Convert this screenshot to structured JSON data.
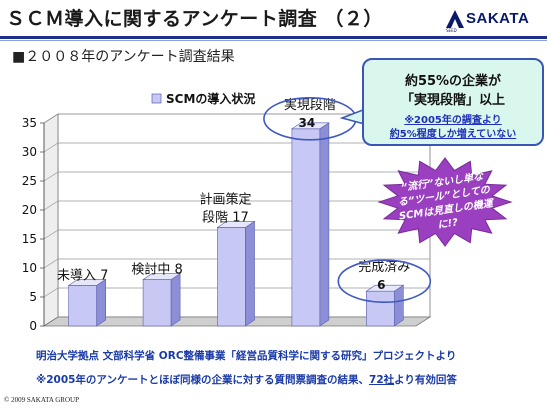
{
  "header": {
    "title": "ＳＣＭ導入に関するアンケート調査 （２）",
    "logo_text": "SAKATA",
    "logo_sub": "SEED",
    "subtitle": "■２００８年のアンケート調査結果"
  },
  "callout": {
    "line1": "約55%の企業が",
    "line2": "「実現段階」以上",
    "line3": "※2005年の調査より",
    "line4": "約5%程度しか増えていない"
  },
  "burst": {
    "text": "“流行”ないし単なる“ツール”としてのSCMは見直しの機運に!?"
  },
  "footer": {
    "line1": "明治大学拠点 文部科学省 ORC整備事業「経営品質科学に関する研究」プロジェクトより",
    "line2_pre": "※2005年のアンケートとほぼ同様の企業に対する質問票調査の結果、",
    "line2_count": "72社",
    "line2_post": "より有効回答",
    "copyright": "© 2009 SAKATA GROUP"
  },
  "chart_data": {
    "type": "bar",
    "legend": "SCMの導入状況",
    "categories": [
      "未導入",
      "検討中",
      "計画策定段階",
      "実現段階",
      "完成済み"
    ],
    "values": [
      7,
      8,
      17,
      34,
      6
    ],
    "ylim": [
      0,
      35
    ],
    "yticks": [
      0,
      5,
      10,
      15,
      20,
      25,
      30,
      35
    ],
    "highlighted": [
      "実現段階",
      "完成済み"
    ],
    "colors": {
      "bar": "#c7c9f4",
      "bar_side": "#8c8fd6",
      "bar_top": "#e6e7fb",
      "highlight_ring": "#3f58c4",
      "burst": "#9a3fc0"
    }
  }
}
